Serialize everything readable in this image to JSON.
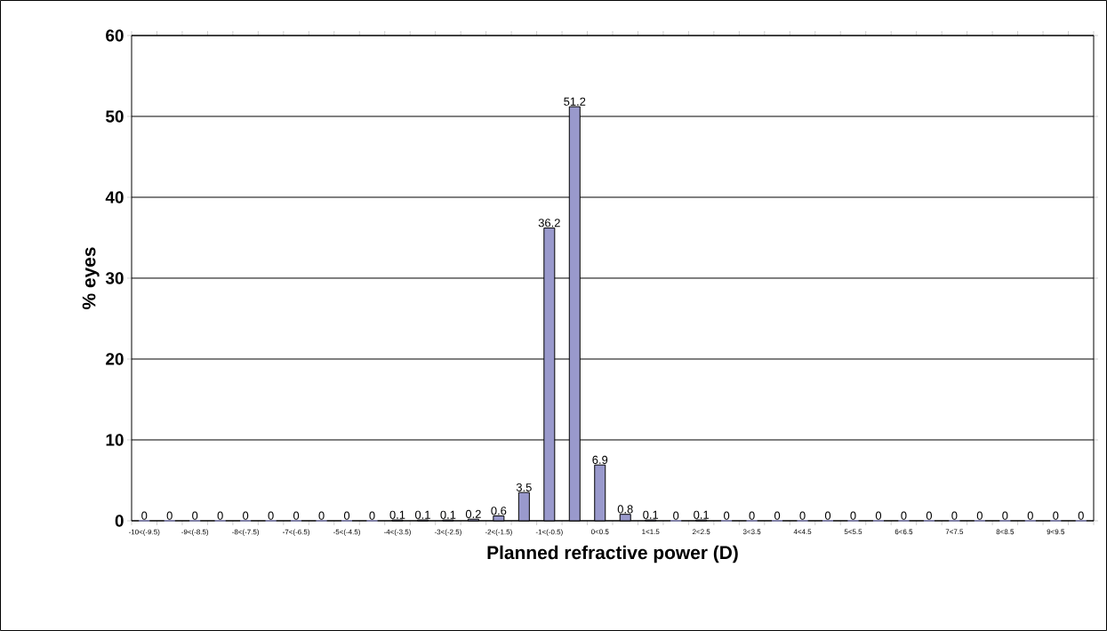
{
  "chart_data": {
    "type": "bar",
    "xlabel": "Planned refractive power (D)",
    "ylabel": "% eyes",
    "categories": [
      "-10<(-9.5)",
      null,
      "-9<(-8.5)",
      null,
      "-8<(-7.5)",
      null,
      "-7<(-6.5)",
      null,
      "-5<(-4.5)",
      null,
      "-4<(-3.5)",
      null,
      "-3<(-2.5)",
      null,
      "-2<(-1.5)",
      null,
      "-1<(-0.5)",
      null,
      "0<0.5",
      null,
      "1<1.5",
      null,
      "2<2.5",
      null,
      "3<3.5",
      null,
      "4<4.5",
      null,
      "5<5.5",
      null,
      "6<6.5",
      null,
      "7<7.5",
      null,
      "8<8.5",
      null,
      "9<9.5",
      null
    ],
    "values": [
      0,
      0,
      0,
      0,
      0,
      0,
      0,
      0,
      0,
      0,
      0.1,
      0.1,
      0.1,
      0.2,
      0.6,
      3.5,
      36.2,
      51.2,
      6.9,
      0.8,
      0.1,
      0,
      0.1,
      0,
      0,
      0,
      0,
      0,
      0,
      0,
      0,
      0,
      0,
      0,
      0,
      0,
      0,
      0
    ],
    "color": "#9999cc",
    "ylim": [
      0,
      60
    ],
    "yticks": [
      0,
      10,
      20,
      30,
      40,
      50,
      60
    ],
    "grid": "y",
    "data_labels": true
  }
}
